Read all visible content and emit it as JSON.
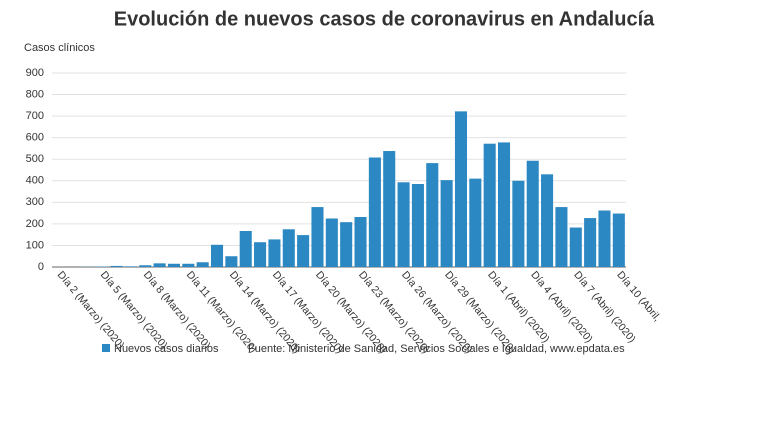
{
  "chart_data": {
    "type": "bar",
    "title": "Evolución de nuevos casos de coronavirus en Andalucía",
    "y_label": "Casos clínicos",
    "source": "Fuente: Ministerio de Sanidad, Servicios Sociales e Igualdad, www.epdata.es",
    "categories": [
      "Día 2 (Marzo) (2020)",
      null,
      null,
      "Día 5 (Marzo) (2020)",
      null,
      null,
      "Día 8 (Marzo) (2020)",
      null,
      null,
      "Día 11 (Marzo) (2020)",
      null,
      null,
      "Día 14 (Marzo) (2020)",
      null,
      null,
      "Día 17 (Marzo) (2020)",
      null,
      null,
      "Día 20 (Marzo) (2020)",
      null,
      null,
      "Día 23 (Marzo) (2020)",
      null,
      null,
      "Día 26 (Marzo) (2020)",
      null,
      null,
      "Día 29 (Marzo) (2020)",
      null,
      null,
      "Día 1 (Abril) (2020)",
      null,
      null,
      "Día 4 (Abril) (2020)",
      null,
      null,
      "Día 7 (Abril) (2020)",
      null,
      null,
      "Día 10 (Abril,"
    ],
    "series": [
      {
        "name": "Nuevos casos diarios",
        "color": "#2b88c2",
        "values": [
          0,
          0,
          1,
          2,
          5,
          3,
          8,
          17,
          15,
          15,
          22,
          103,
          50,
          167,
          115,
          128,
          175,
          148,
          278,
          225,
          208,
          232,
          508,
          538,
          393,
          385,
          482,
          403,
          722,
          410,
          572,
          578,
          400,
          493,
          430,
          278,
          183,
          227,
          262,
          248
        ]
      }
    ],
    "ylim": [
      0,
      900
    ],
    "yticks": [
      0,
      100,
      200,
      300,
      400,
      500,
      600,
      700,
      800,
      900
    ],
    "grid": true
  }
}
